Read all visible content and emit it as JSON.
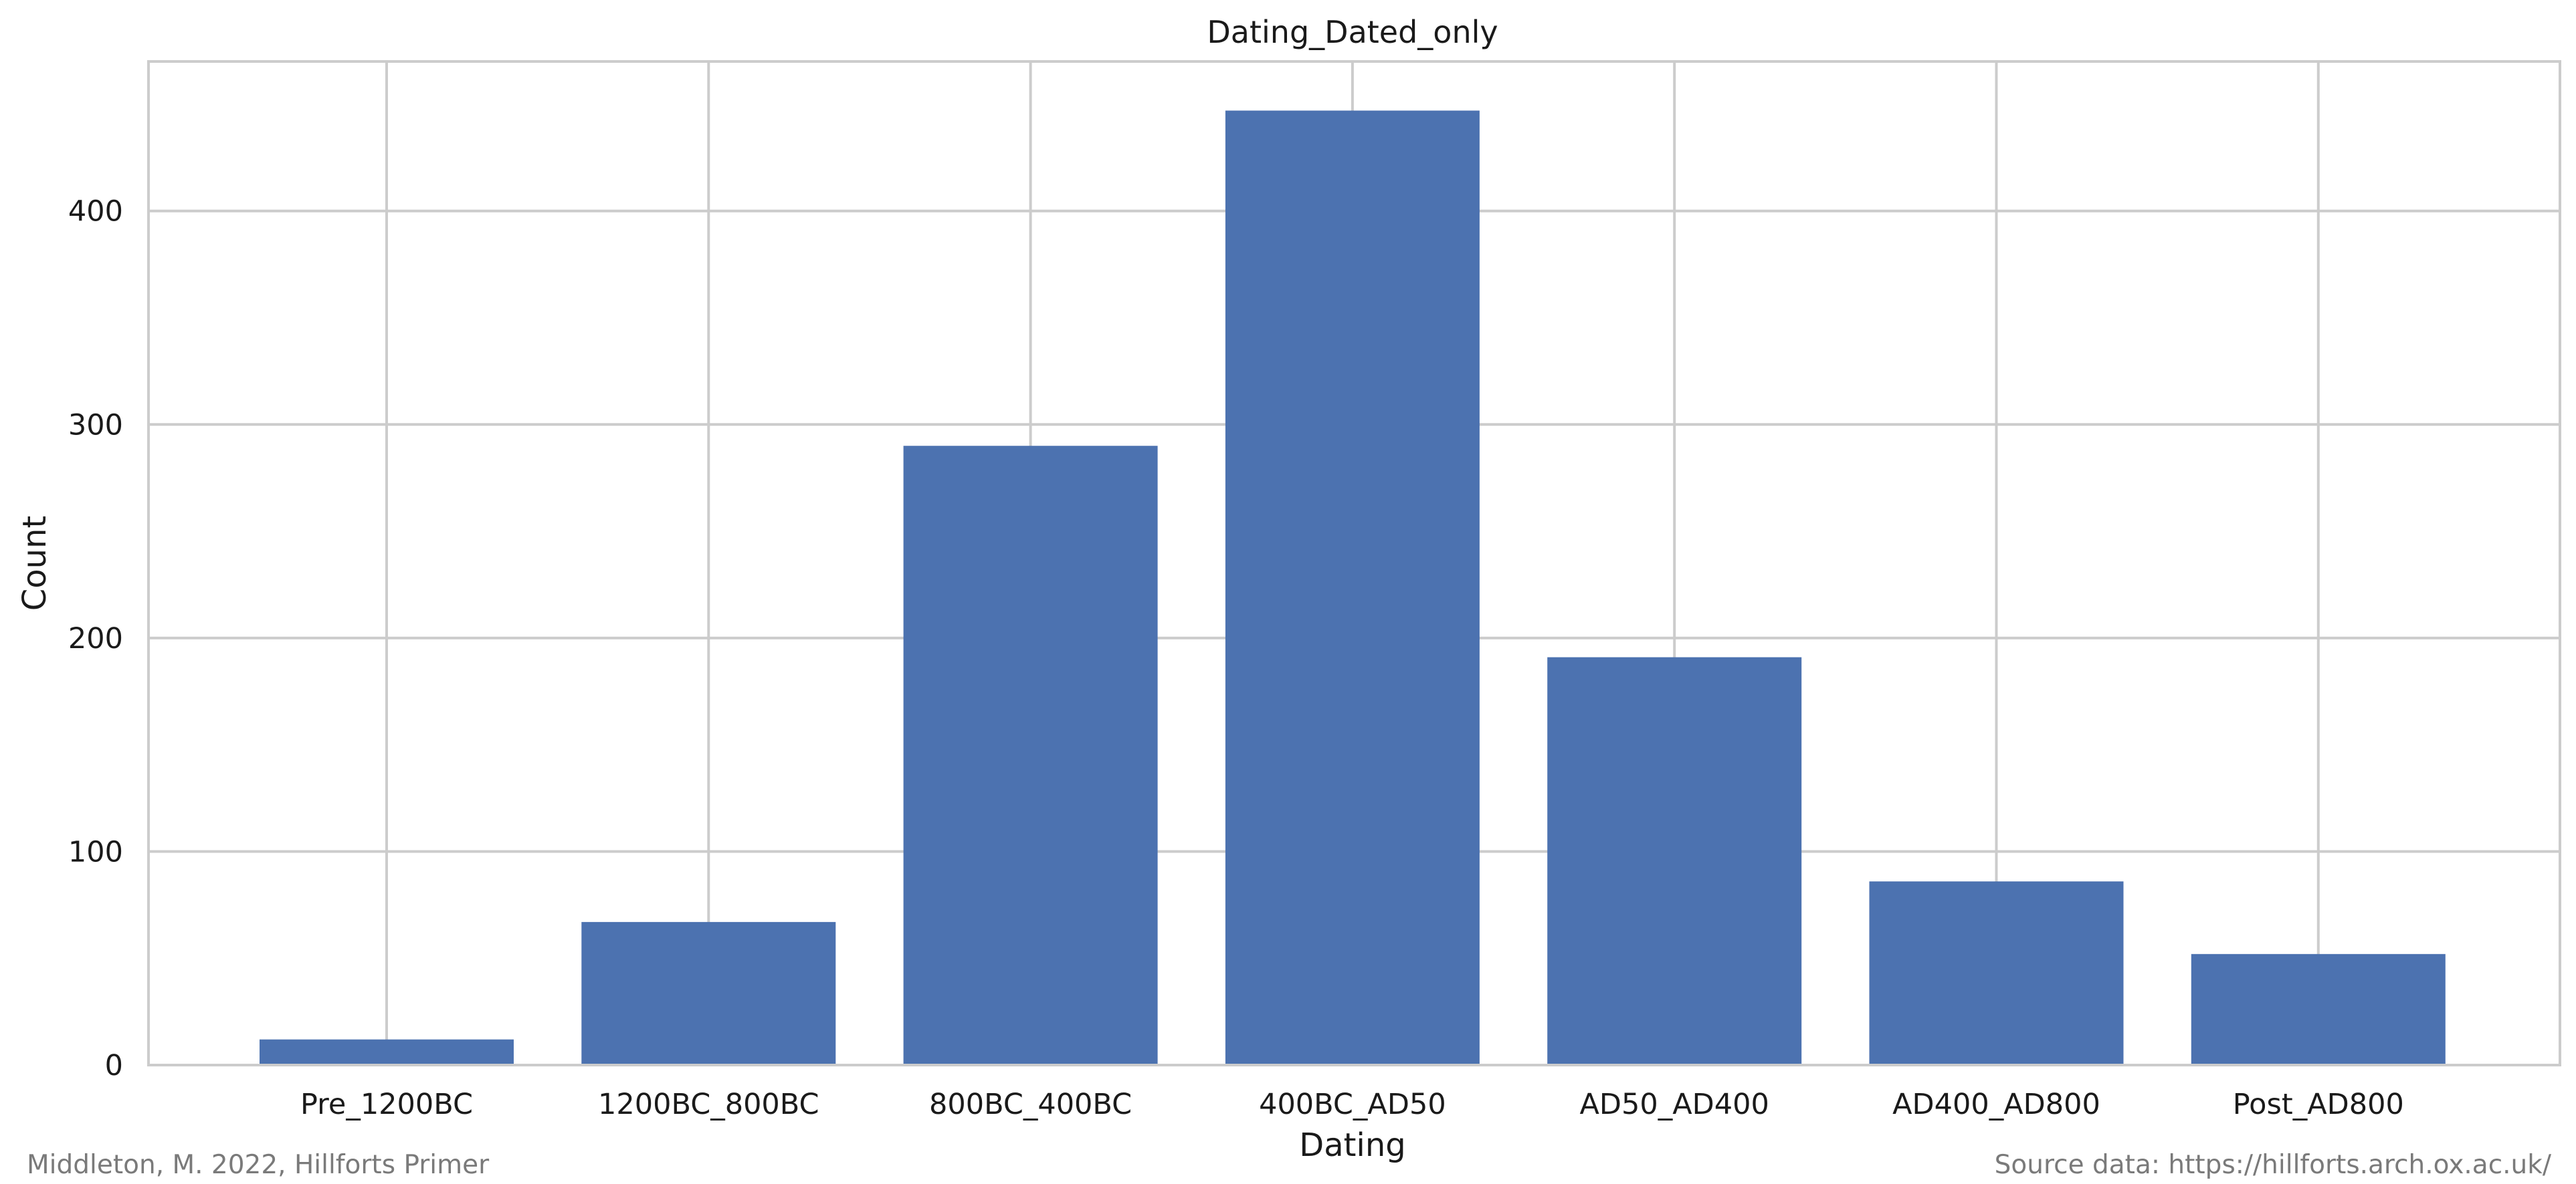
{
  "chart_data": {
    "type": "bar",
    "title": "Dating_Dated_only",
    "xlabel": "Dating",
    "ylabel": "Count",
    "categories": [
      "Pre_1200BC",
      "1200BC_800BC",
      "800BC_400BC",
      "400BC_AD50",
      "AD50_AD400",
      "AD400_AD800",
      "Post_AD800"
    ],
    "values": [
      12,
      67,
      290,
      447,
      191,
      86,
      52
    ],
    "ylim": [
      0,
      470
    ],
    "yticks": [
      0,
      100,
      200,
      300,
      400
    ],
    "grid": true,
    "legend": "none",
    "colors": {
      "bar": "#4c72b0",
      "grid": "#cccccc",
      "spine": "#cccccc"
    }
  },
  "footer": {
    "credit": "Middleton, M. 2022, Hillforts Primer",
    "source": "Source data: https://hillforts.arch.ox.ac.uk/"
  }
}
